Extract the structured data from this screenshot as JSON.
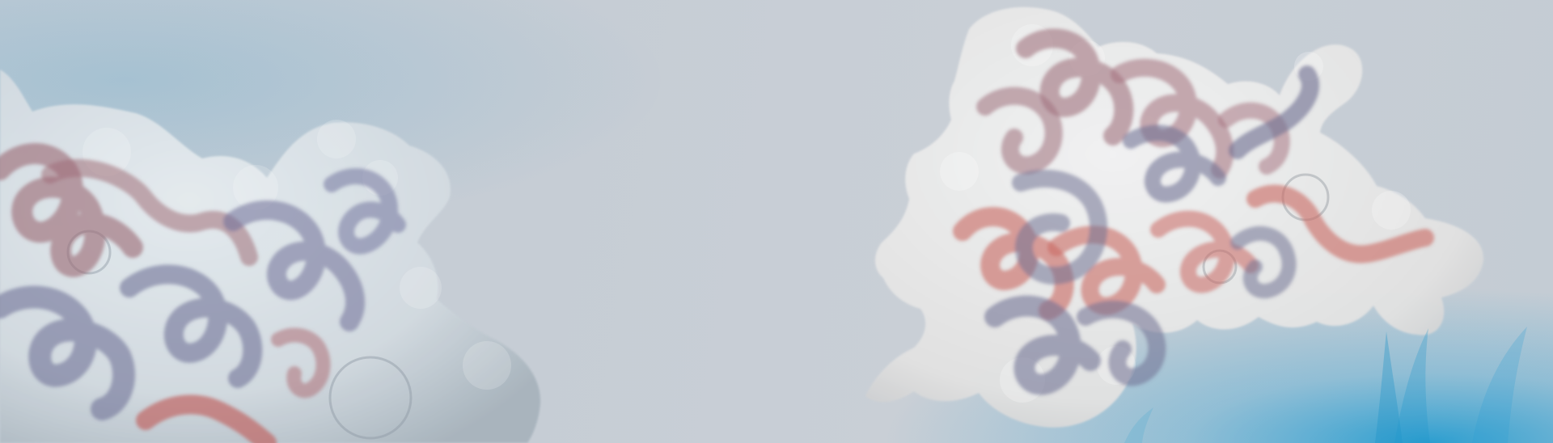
{
  "banner": {
    "background_color": "#c6cdd5",
    "glow_color": "#1e8fc4",
    "graphics": [
      {
        "kind": "protein-surface-illustration",
        "surface_color": "#d6dde2",
        "ribbon_colors": [
          "#6d6f95",
          "#9b6b75",
          "#c0635f"
        ]
      },
      {
        "kind": "protein-surface-illustration",
        "surface_color": "#ececec",
        "ribbon_colors": [
          "#6f7092",
          "#a2747f",
          "#c96a64"
        ]
      }
    ]
  }
}
